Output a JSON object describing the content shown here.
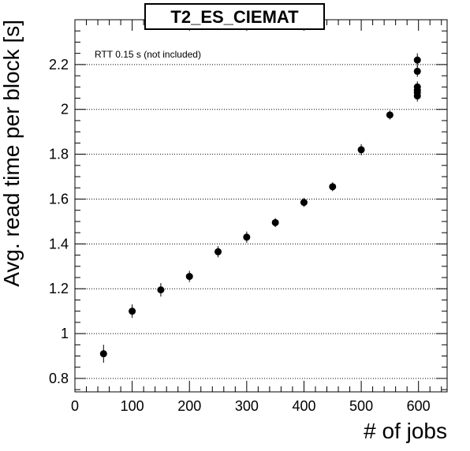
{
  "chart_data": {
    "type": "scatter",
    "title": "T2_ES_CIEMAT",
    "xlabel": "# of jobs",
    "ylabel": "Avg. read time per block [s]",
    "annotation": "RTT 0.15 s (not included)",
    "xlim": [
      0,
      650
    ],
    "ylim": [
      0.74,
      2.4
    ],
    "xticks": [
      0,
      100,
      200,
      300,
      400,
      500,
      600
    ],
    "yticks": [
      0.8,
      1,
      1.2,
      1.4,
      1.6,
      1.8,
      2,
      2.2
    ],
    "grid": "horizontal-dotted",
    "series": [
      {
        "points": [
          {
            "x": 50,
            "y": 0.91,
            "err": 0.04
          },
          {
            "x": 100,
            "y": 1.1,
            "err": 0.03
          },
          {
            "x": 150,
            "y": 1.195,
            "err": 0.03
          },
          {
            "x": 200,
            "y": 1.255,
            "err": 0.025
          },
          {
            "x": 250,
            "y": 1.365,
            "err": 0.025
          },
          {
            "x": 300,
            "y": 1.43,
            "err": 0.025
          },
          {
            "x": 350,
            "y": 1.495,
            "err": 0.02
          },
          {
            "x": 400,
            "y": 1.585,
            "err": 0.02
          },
          {
            "x": 450,
            "y": 1.655,
            "err": 0.02
          },
          {
            "x": 500,
            "y": 1.82,
            "err": 0.025
          },
          {
            "x": 550,
            "y": 1.975,
            "err": 0.02
          },
          {
            "x": 598,
            "y": 2.22,
            "err": 0.03
          },
          {
            "x": 598,
            "y": 2.17,
            "err": 0.025
          },
          {
            "x": 598,
            "y": 2.1,
            "err": 0.025
          },
          {
            "x": 598,
            "y": 2.085,
            "err": 0.025
          },
          {
            "x": 598,
            "y": 2.075,
            "err": 0.025
          },
          {
            "x": 598,
            "y": 2.06,
            "err": 0.025
          }
        ]
      }
    ]
  }
}
